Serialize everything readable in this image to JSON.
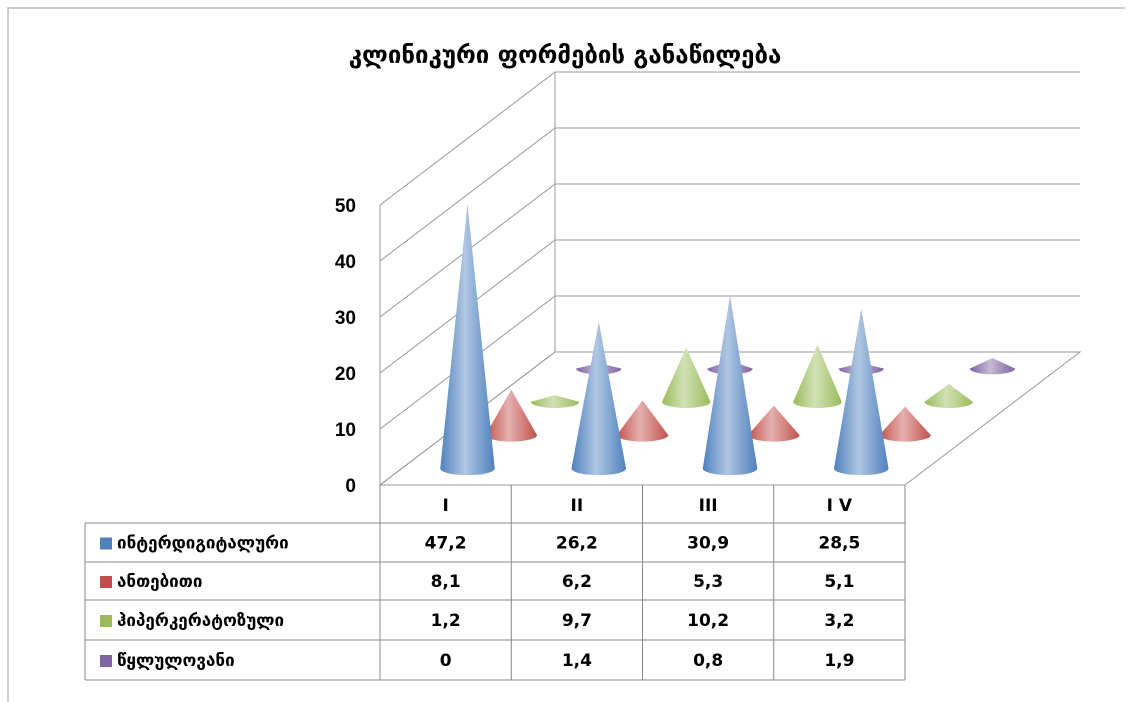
{
  "chart_data": {
    "type": "cone3d",
    "title": "კლინიკური ფორმების განაწილება",
    "categories": [
      "I",
      "II",
      "III",
      "I V"
    ],
    "series": [
      {
        "name": "ინტერდიგიტალური",
        "color": "#4f81bd",
        "values": [
          47.2,
          26.2,
          30.9,
          28.5
        ],
        "value_labels": [
          "47,2",
          "26,2",
          "30,9",
          "28,5"
        ]
      },
      {
        "name": "ანთებითი",
        "color": "#c0504d",
        "values": [
          8.1,
          6.2,
          5.3,
          5.1
        ],
        "value_labels": [
          "8,1",
          "6,2",
          "5,3",
          "5,1"
        ]
      },
      {
        "name": "ჰიპერკერატოზული",
        "color": "#9bbb59",
        "values": [
          1.2,
          9.7,
          10.2,
          3.2
        ],
        "value_labels": [
          "1,2",
          "9,7",
          "10,2",
          "3,2"
        ]
      },
      {
        "name": "წყლულოვანი",
        "color": "#8064a2",
        "values": [
          0,
          1.4,
          0.8,
          1.9
        ],
        "value_labels": [
          "0",
          "1,4",
          "0,8",
          "1,9"
        ]
      }
    ],
    "ylim": [
      0,
      50
    ],
    "yticks": [
      0,
      10,
      20,
      30,
      40,
      50
    ],
    "grid": true,
    "data_table": true
  }
}
